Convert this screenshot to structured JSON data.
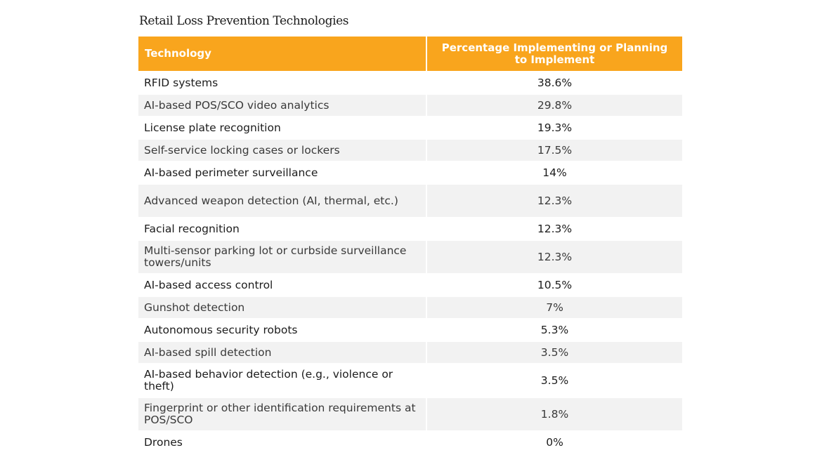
{
  "title": "Retail Loss Prevention Technologies",
  "table": {
    "header_color": "#f9a51d",
    "columns": [
      "Technology",
      "Percentage Implementing or Planning to Implement"
    ],
    "rows": [
      {
        "technology": "RFID systems",
        "percentage": "38.6%"
      },
      {
        "technology": "AI-based POS/SCO video analytics",
        "percentage": "29.8%"
      },
      {
        "technology": "License plate recognition",
        "percentage": "19.3%"
      },
      {
        "technology": "Self-service locking cases or lockers",
        "percentage": "17.5%"
      },
      {
        "technology": "AI-based perimeter surveillance",
        "percentage": "14%"
      },
      {
        "technology": "Advanced weapon detection (AI, thermal, etc.)",
        "percentage": "12.3%"
      },
      {
        "technology": "Facial recognition",
        "percentage": "12.3%"
      },
      {
        "technology": "Multi-sensor parking lot or curbside surveillance towers/units",
        "percentage": "12.3%"
      },
      {
        "technology": "AI-based access control",
        "percentage": "10.5%"
      },
      {
        "technology": "Gunshot detection",
        "percentage": "7%"
      },
      {
        "technology": "Autonomous security robots",
        "percentage": "5.3%"
      },
      {
        "technology": "AI-based spill detection",
        "percentage": "3.5%"
      },
      {
        "technology": "AI-based behavior detection (e.g., violence or theft)",
        "percentage": "3.5%"
      },
      {
        "technology": "Fingerprint or other identification requirements at POS/SCO",
        "percentage": "1.8%"
      },
      {
        "technology": "Drones",
        "percentage": "0%"
      }
    ]
  }
}
